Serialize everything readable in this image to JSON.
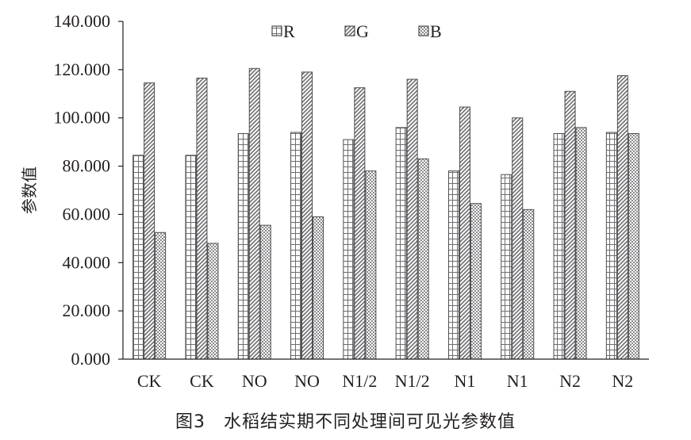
{
  "chart_data": {
    "type": "bar",
    "categories": [
      "CK",
      "CK",
      "NO",
      "NO",
      "N1/2",
      "N1/2",
      "N1",
      "N1",
      "N2",
      "N2"
    ],
    "series": [
      {
        "name": "R",
        "values": [
          84.5,
          84.5,
          93.5,
          94.0,
          91.0,
          96.0,
          78.0,
          76.5,
          93.5,
          94.0
        ]
      },
      {
        "name": "G",
        "values": [
          114.5,
          116.5,
          120.5,
          119.0,
          112.5,
          116.0,
          104.5,
          100.0,
          111.0,
          117.5
        ]
      },
      {
        "name": "B",
        "values": [
          52.5,
          48.0,
          55.5,
          59.0,
          78.0,
          83.0,
          64.5,
          62.0,
          96.0,
          93.5
        ]
      }
    ],
    "ylabel": "参数值",
    "xlabel": "",
    "ylim": [
      0,
      140
    ],
    "yticks": [
      "0.000",
      "20.000",
      "40.000",
      "60.000",
      "80.000",
      "100.000",
      "120.000",
      "140.000"
    ],
    "legend_position": "top-center",
    "grid": false
  },
  "caption": "图3　水稻结实期不同处理间可见光参数值"
}
